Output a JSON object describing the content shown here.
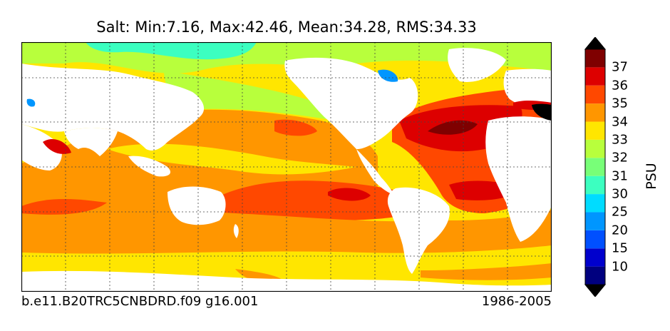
{
  "title": "Salt: Min:7.16, Max:42.46, Mean:34.28, RMS:34.33",
  "caption_left": "b.e11.B20TRC5CNBDRD.f09 g16.001",
  "caption_right": "1986-2005",
  "colorbar": {
    "label": "PSU",
    "ticks": [
      "10",
      "15",
      "20",
      "25",
      "30",
      "31",
      "32",
      "33",
      "34",
      "35",
      "36",
      "37"
    ],
    "colors": [
      "#00007f",
      "#0000cd",
      "#0050ff",
      "#0096ff",
      "#00dcff",
      "#3cffc0",
      "#78ff78",
      "#b8ff3c",
      "#ffe600",
      "#ff9600",
      "#ff4800",
      "#dd0000",
      "#7f0000"
    ]
  },
  "palette": {
    "land": "#ffffff",
    "sal_32": "#b8ff3c",
    "sal_33": "#ffe600",
    "sal_34": "#ff9600",
    "sal_35": "#ff4800",
    "sal_36": "#dd0000",
    "sal_37": "#7f0000",
    "sal_31": "#3cffc0",
    "sal_25": "#0096ff"
  }
}
